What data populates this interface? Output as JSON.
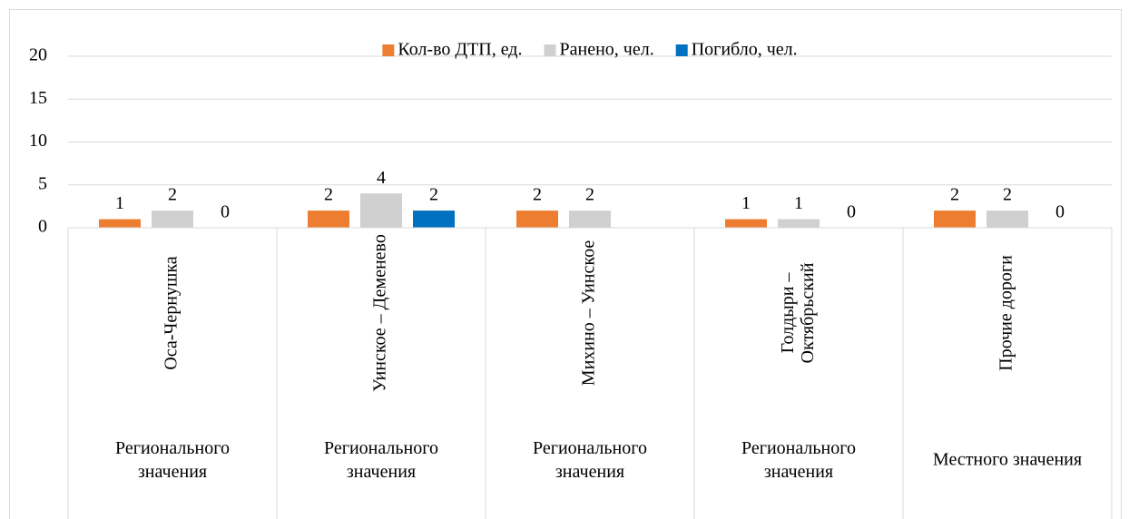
{
  "chart_data": {
    "type": "bar",
    "categories": [
      "Оса-Чернушка",
      "Уинское – Деменево",
      "Михино – Уинское",
      "Голдыри – Октябрьский",
      "Прочие дороги"
    ],
    "groups": [
      "Регионального значения",
      "Регионального значения",
      "Регионального значения",
      "Регионального значения",
      "Местного значения"
    ],
    "series": [
      {
        "name": "Кол-во ДТП, ед.",
        "color": "#ed7d31",
        "values": [
          1,
          2,
          2,
          1,
          2
        ]
      },
      {
        "name": "Ранено, чел.",
        "color": "#d0d0d0",
        "values": [
          2,
          4,
          2,
          1,
          2
        ]
      },
      {
        "name": "Погибло, чел.",
        "color": "#0070c0",
        "values": [
          0,
          2,
          null,
          0,
          0
        ]
      }
    ],
    "ylim": [
      0,
      20
    ],
    "yticks": [
      0,
      5,
      10,
      15,
      20
    ],
    "grid": true,
    "legend": "top"
  }
}
